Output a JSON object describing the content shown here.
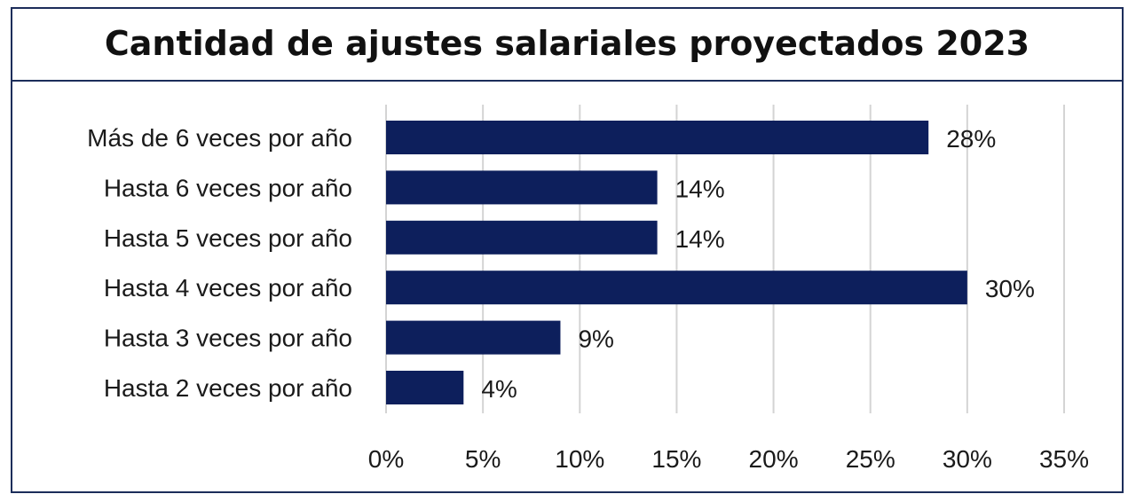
{
  "chart_data": {
    "type": "bar",
    "orientation": "horizontal",
    "title": "Cantidad de ajustes salariales proyectados 2023",
    "categories": [
      "Más de 6 veces por año",
      "Hasta 6 veces por año",
      "Hasta 5 veces por año",
      "Hasta 4 veces por año",
      "Hasta 3 veces por año",
      "Hasta 2 veces por año"
    ],
    "values": [
      28,
      14,
      14,
      30,
      9,
      4
    ],
    "value_labels": [
      "28%",
      "14%",
      "14%",
      "30%",
      "9%",
      "4%"
    ],
    "x_ticks": [
      0,
      5,
      10,
      15,
      20,
      25,
      30,
      35
    ],
    "x_tick_labels": [
      "0%",
      "5%",
      "10%",
      "15%",
      "20%",
      "25%",
      "30%",
      "35%"
    ],
    "xlim": [
      0,
      35
    ],
    "grid": "vertical",
    "bar_color": "#0d1f5c",
    "xlabel": "",
    "ylabel": ""
  }
}
